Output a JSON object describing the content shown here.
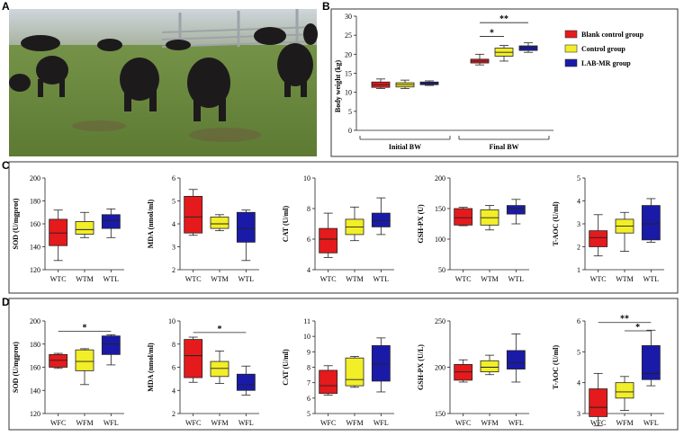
{
  "panels": {
    "A": "A",
    "B": "B",
    "C": "C",
    "D": "D"
  },
  "photo": {
    "description_icon": "yak-photo"
  },
  "colors": {
    "blank": "#e41a1c",
    "control": "#f2ee27",
    "lab": "#1a1aa8",
    "axis": "#222222"
  },
  "panel_b": {
    "ylabel": "Body weight (kg)",
    "yticks": [
      "0",
      "5",
      "10",
      "15",
      "20",
      "25",
      "30"
    ],
    "groups": [
      "Initial BW",
      "Final BW"
    ],
    "legend": [
      "Blank control group",
      "Control group",
      "LAB-MR group"
    ],
    "sig": [
      "*",
      "**"
    ]
  },
  "chart_data": [
    {
      "id": "B",
      "type": "box",
      "title": "",
      "ylabel": "Body weight (kg)",
      "ylim": [
        0,
        30
      ],
      "categories": [
        "Initial BW",
        "Final BW"
      ],
      "series": [
        {
          "name": "Blank control group",
          "boxes": [
            [
              11,
              11.3,
              12,
              12.7,
              13.5
            ],
            [
              17.2,
              17.7,
              18.2,
              18.7,
              20
            ]
          ]
        },
        {
          "name": "Control group",
          "boxes": [
            [
              11,
              11.4,
              12,
              12.5,
              13.2
            ],
            [
              18.2,
              19.5,
              20.5,
              21.6,
              22.3
            ]
          ]
        },
        {
          "name": "LAB-MR group",
          "boxes": [
            [
              11.8,
              12,
              12.3,
              12.7,
              13
            ],
            [
              20.5,
              21,
              21.7,
              22.2,
              23
            ]
          ]
        }
      ]
    },
    {
      "id": "C1",
      "type": "box",
      "ylabel": "SOD (U/mgprot)",
      "ylim": [
        120,
        200
      ],
      "yticks": [
        "120",
        "140",
        "160",
        "180",
        "200"
      ],
      "categories": [
        "WTC",
        "WTM",
        "WTL"
      ],
      "boxes": [
        [
          128,
          141,
          152,
          164,
          172
        ],
        [
          148,
          151,
          155,
          162,
          170
        ],
        [
          148,
          156,
          163,
          168,
          173
        ]
      ]
    },
    {
      "id": "C2",
      "type": "box",
      "ylabel": "MDA (nmol/ml)",
      "ylim": [
        2,
        6
      ],
      "yticks": [
        "2",
        "3",
        "4",
        "5",
        "6"
      ],
      "categories": [
        "WTC",
        "WTM",
        "WTL"
      ],
      "boxes": [
        [
          3.5,
          3.6,
          4.3,
          5.2,
          5.5
        ],
        [
          3.7,
          3.8,
          4.0,
          4.3,
          4.4
        ],
        [
          2.4,
          3.2,
          3.8,
          4.5,
          4.6
        ]
      ]
    },
    {
      "id": "C3",
      "type": "box",
      "ylabel": "CAT (U/ml)",
      "ylim": [
        4,
        10
      ],
      "yticks": [
        "4",
        "6",
        "8",
        "10"
      ],
      "categories": [
        "WTC",
        "WTM",
        "WTL"
      ],
      "boxes": [
        [
          4.8,
          5.1,
          6.0,
          6.7,
          7.7
        ],
        [
          5.9,
          6.3,
          6.8,
          7.3,
          8.1
        ],
        [
          6.3,
          6.8,
          7.2,
          7.7,
          8.7
        ]
      ]
    },
    {
      "id": "C4",
      "type": "box",
      "ylabel": "GSH-PX (U)",
      "ylim": [
        50,
        200
      ],
      "yticks": [
        "50",
        "100",
        "150",
        "200"
      ],
      "categories": [
        "WTC",
        "WTM",
        "WTL"
      ],
      "boxes": [
        [
          122,
          123,
          135,
          150,
          152
        ],
        [
          115,
          123,
          135,
          148,
          155
        ],
        [
          125,
          141,
          150,
          155,
          165
        ]
      ]
    },
    {
      "id": "C5",
      "type": "box",
      "ylabel": "T-AOC (U/ml)",
      "ylim": [
        1,
        5
      ],
      "yticks": [
        "1",
        "2",
        "3",
        "4",
        "5"
      ],
      "categories": [
        "WTC",
        "WTM",
        "WTL"
      ],
      "boxes": [
        [
          1.6,
          2.0,
          2.4,
          2.7,
          3.4
        ],
        [
          1.8,
          2.6,
          2.9,
          3.2,
          3.5
        ],
        [
          2.2,
          2.3,
          3.0,
          3.8,
          4.1
        ]
      ]
    },
    {
      "id": "D1",
      "type": "box",
      "ylabel": "SOD (U/mgprot)",
      "ylim": [
        120,
        200
      ],
      "yticks": [
        "120",
        "140",
        "160",
        "180",
        "200"
      ],
      "categories": [
        "WFC",
        "WFM",
        "WFL"
      ],
      "boxes": [
        [
          159,
          160,
          166,
          171,
          172
        ],
        [
          145,
          157,
          165,
          175,
          176
        ],
        [
          162,
          171,
          180,
          187,
          188
        ]
      ],
      "sig": [
        {
          "from": 0,
          "to": 2,
          "label": "*",
          "y": 191
        }
      ]
    },
    {
      "id": "D2",
      "type": "box",
      "ylabel": "MDA (nmol/ml)",
      "ylim": [
        2,
        10
      ],
      "yticks": [
        "2",
        "4",
        "6",
        "8",
        "10"
      ],
      "categories": [
        "WFC",
        "WFM",
        "WFL"
      ],
      "boxes": [
        [
          4.7,
          5.1,
          7.0,
          8.4,
          8.6
        ],
        [
          4.6,
          5.2,
          5.9,
          6.5,
          7.4
        ],
        [
          3.6,
          4.0,
          4.5,
          5.4,
          6.1
        ]
      ],
      "sig": [
        {
          "from": 0,
          "to": 2,
          "label": "*",
          "y": 9.0
        }
      ]
    },
    {
      "id": "D3",
      "type": "box",
      "ylabel": "CAT (U/ml)",
      "ylim": [
        5,
        11
      ],
      "yticks": [
        "5",
        "6",
        "7",
        "8",
        "9",
        "10",
        "11"
      ],
      "categories": [
        "WFC",
        "WFM",
        "WFL"
      ],
      "boxes": [
        [
          6.2,
          6.3,
          6.8,
          7.8,
          8.1
        ],
        [
          6.7,
          6.8,
          7.2,
          8.6,
          8.7
        ],
        [
          6.4,
          7.1,
          8.2,
          9.4,
          9.9
        ]
      ]
    },
    {
      "id": "D4",
      "type": "box",
      "ylabel": "GSH-PX (U/L)",
      "ylim": [
        150,
        250
      ],
      "yticks": [
        "150",
        "200",
        "250"
      ],
      "categories": [
        "WFC",
        "WFM",
        "WFL"
      ],
      "boxes": [
        [
          184,
          186,
          195,
          203,
          208
        ],
        [
          192,
          195,
          200,
          207,
          213
        ],
        [
          184,
          198,
          205,
          218,
          236
        ]
      ]
    },
    {
      "id": "D5",
      "type": "box",
      "ylabel": "T-AOC (U/ml)",
      "ylim": [
        3,
        6
      ],
      "yticks": [
        "3",
        "4",
        "5",
        "6"
      ],
      "categories": [
        "WFC",
        "WFM",
        "WFL"
      ],
      "boxes": [
        [
          2.6,
          2.9,
          3.2,
          3.8,
          4.3
        ],
        [
          3.1,
          3.5,
          3.7,
          4.0,
          4.2
        ],
        [
          3.9,
          4.1,
          4.3,
          5.2,
          5.7
        ]
      ],
      "sig": [
        {
          "from": 0,
          "to": 2,
          "label": "**",
          "y": 5.95
        },
        {
          "from": 1,
          "to": 2,
          "label": "*",
          "y": 5.68
        }
      ]
    }
  ]
}
